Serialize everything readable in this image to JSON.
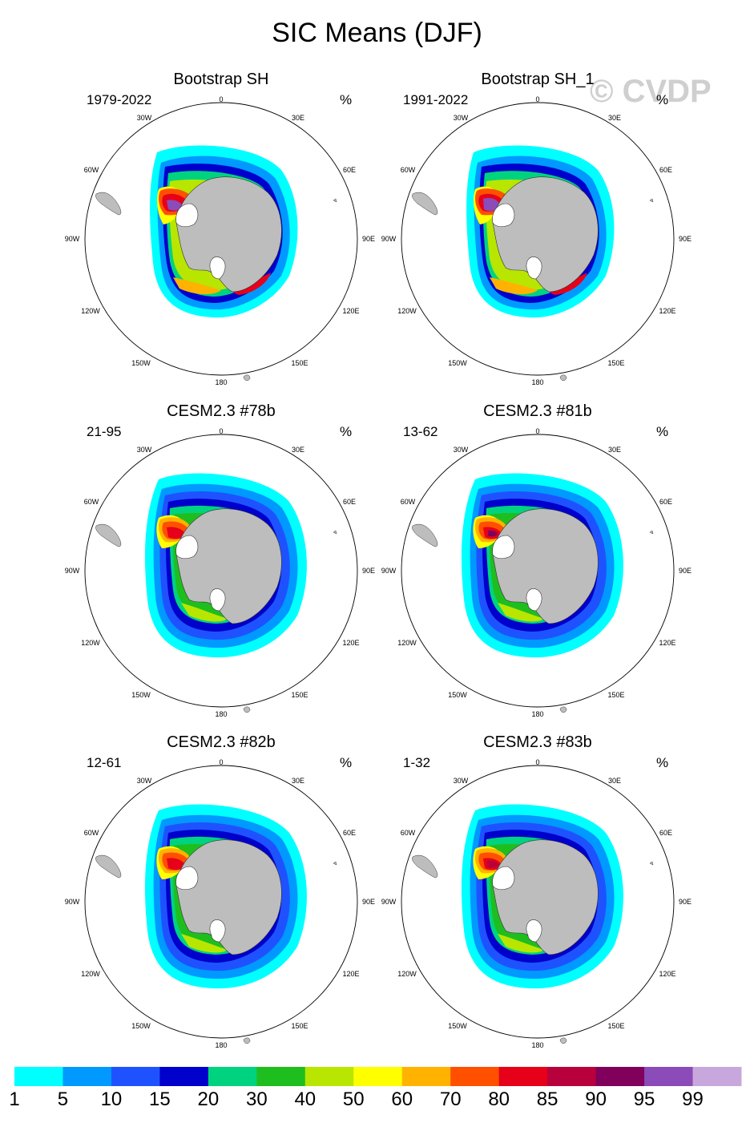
{
  "figure": {
    "title": "SIC Means (DJF)",
    "watermark": "© CVDP",
    "unit": "%"
  },
  "longitude_labels": [
    "0",
    "30E",
    "60E",
    "90E",
    "120E",
    "150E",
    "180",
    "150W",
    "120W",
    "90W",
    "60W",
    "30W"
  ],
  "panels": [
    {
      "title": "Bootstrap SH",
      "period": "1979-2022",
      "unit": "%"
    },
    {
      "title": "Bootstrap SH_1",
      "period": "1991-2022",
      "unit": "%"
    },
    {
      "title": "CESM2.3 #78b",
      "period": "21-95",
      "unit": "%"
    },
    {
      "title": "CESM2.3 #81b",
      "period": "13-62",
      "unit": "%"
    },
    {
      "title": "CESM2.3 #82b",
      "period": "12-61",
      "unit": "%"
    },
    {
      "title": "CESM2.3 #83b",
      "period": "1-32",
      "unit": "%"
    }
  ],
  "colorbar": {
    "labels": [
      "1",
      "5",
      "10",
      "15",
      "20",
      "30",
      "40",
      "50",
      "60",
      "70",
      "80",
      "85",
      "90",
      "95",
      "99"
    ],
    "colors": [
      "#00ffff",
      "#0099ff",
      "#1f52ff",
      "#0000cc",
      "#00d37f",
      "#1fbe1f",
      "#b8e600",
      "#ffff00",
      "#ffb300",
      "#ff5000",
      "#e6001a",
      "#b8003d",
      "#80005c",
      "#8b4bb8",
      "#c8a8dc"
    ]
  },
  "colors": {
    "land": "#bdbdbd",
    "ice_shelf": "#ffffff"
  }
}
